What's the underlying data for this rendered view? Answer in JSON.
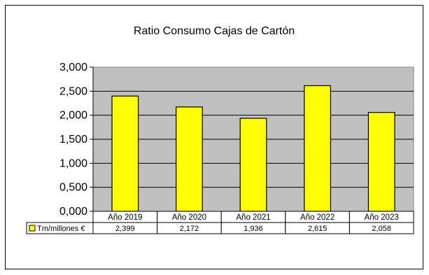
{
  "chart_data": {
    "type": "bar",
    "title": "Ratio Consumo Cajas de Cartón",
    "categories": [
      "Año 2019",
      "Año 2020",
      "Año 2021",
      "Año 2022",
      "Año 2023"
    ],
    "series": [
      {
        "name": "Tm/millones €",
        "values": [
          2.399,
          2.172,
          1.936,
          2.615,
          2.058
        ]
      }
    ],
    "value_labels": [
      "2,399",
      "2,172",
      "1,936",
      "2,615",
      "2,058"
    ],
    "y_ticks": [
      "0,000",
      "0,500",
      "1,000",
      "1,500",
      "2,000",
      "2,500",
      "3,000"
    ],
    "ylim": [
      0,
      3
    ],
    "xlabel": "",
    "ylabel": "",
    "grid": true,
    "legend": "data-table",
    "colors": {
      "bar_fill": "#ffff00",
      "bar_stroke": "#000000",
      "plot_bg": "#c0c0c0",
      "gridline": "#000000"
    }
  }
}
